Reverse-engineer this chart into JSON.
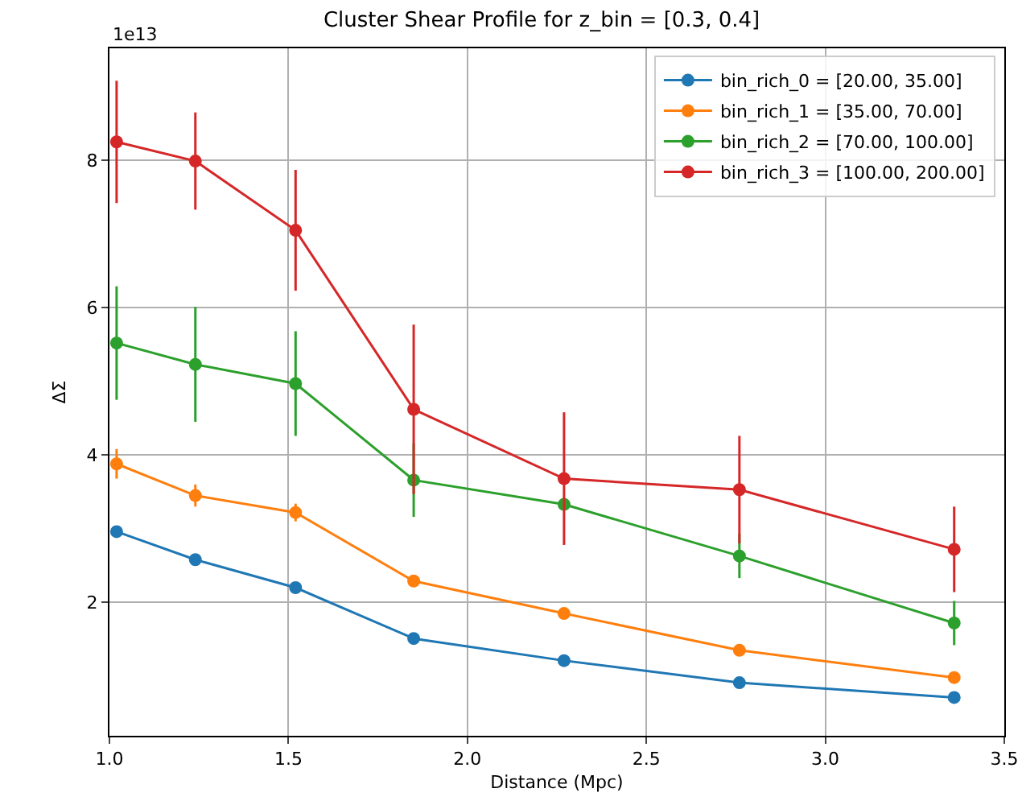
{
  "chart_data": {
    "type": "line",
    "title": "Cluster Shear Profile for z_bin = [0.3, 0.4]",
    "xlabel": "Distance (Mpc)",
    "ylabel": "ΔΣ",
    "annotations": [
      "1e13"
    ],
    "x": [
      1.02,
      1.24,
      1.52,
      1.85,
      2.27,
      2.76,
      3.36
    ],
    "series": [
      {
        "name": "bin_rich_0 = [20.00, 35.00]",
        "color": "#1f77b4",
        "values": [
          2.96,
          2.58,
          2.2,
          1.51,
          1.21,
          0.91,
          0.71
        ]
      },
      {
        "name": "bin_rich_1 = [35.00, 70.00]",
        "color": "#ff7f0e",
        "values": [
          3.88,
          3.45,
          3.22,
          2.29,
          1.85,
          1.35,
          0.98
        ],
        "errors": [
          0.2,
          0.15,
          0.12,
          0.08,
          0.06,
          0.05,
          0.05
        ]
      },
      {
        "name": "bin_rich_2 = [70.00, 100.00]",
        "color": "#2ca02c",
        "values": [
          5.52,
          5.23,
          4.97,
          3.66,
          3.33,
          2.63,
          1.72
        ],
        "errors": [
          0.77,
          0.78,
          0.71,
          0.5,
          null,
          0.3,
          0.3
        ]
      },
      {
        "name": "bin_rich_3 = [100.00, 200.00]",
        "color": "#d62728",
        "values": [
          8.25,
          7.99,
          7.05,
          4.62,
          3.68,
          3.53,
          2.72
        ],
        "errors": [
          0.83,
          0.66,
          0.82,
          1.15,
          0.9,
          0.73,
          0.58
        ]
      }
    ],
    "xlim": [
      1.0,
      3.5
    ],
    "xticks": [
      {
        "value": 1,
        "label": "1.0"
      },
      {
        "value": 1.5,
        "label": "1.5"
      },
      {
        "value": 2,
        "label": "2.0"
      },
      {
        "value": 2.5,
        "label": "2.5"
      },
      {
        "value": 3,
        "label": "3.0"
      },
      {
        "value": 3.5,
        "label": "3.5"
      }
    ],
    "ylim": [
      0.19,
      9.52
    ],
    "yticks": [
      2,
      4,
      6,
      8
    ],
    "grid": true,
    "legend": "top right",
    "marker": "circle",
    "line_style": "solid"
  }
}
